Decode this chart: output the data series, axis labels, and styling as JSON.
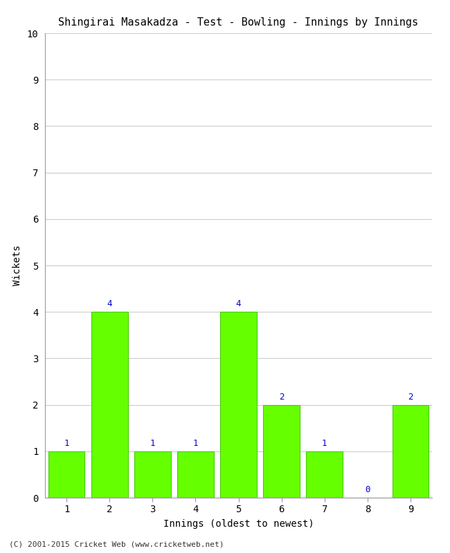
{
  "title": "Shingirai Masakadza - Test - Bowling - Innings by Innings",
  "xlabel": "Innings (oldest to newest)",
  "ylabel": "Wickets",
  "categories": [
    "1",
    "2",
    "3",
    "4",
    "5",
    "6",
    "7",
    "8",
    "9"
  ],
  "values": [
    1,
    4,
    1,
    1,
    4,
    2,
    1,
    0,
    2
  ],
  "bar_color": "#66ff00",
  "bar_edge_color": "#44cc00",
  "label_color": "#0000cc",
  "ylim": [
    0,
    10
  ],
  "yticks": [
    0,
    1,
    2,
    3,
    4,
    5,
    6,
    7,
    8,
    9,
    10
  ],
  "grid_color": "#cccccc",
  "background_color": "#ffffff",
  "title_fontsize": 11,
  "axis_label_fontsize": 10,
  "tick_fontsize": 10,
  "label_fontsize": 9,
  "footer": "(C) 2001-2015 Cricket Web (www.cricketweb.net)"
}
